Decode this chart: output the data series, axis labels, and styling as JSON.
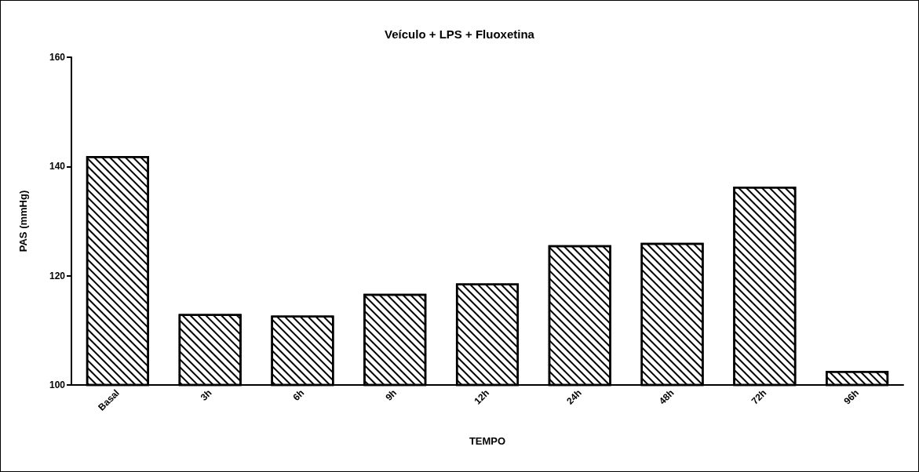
{
  "chart_data": {
    "type": "bar",
    "title": "Veículo + LPS + Fluoxetina",
    "xlabel": "TEMPO",
    "ylabel": "PAS (mmHg)",
    "categories": [
      "Basal",
      "3h",
      "6h",
      "9h",
      "12h",
      "24h",
      "48h",
      "72h",
      "96h"
    ],
    "values": [
      141.9,
      113,
      112.7,
      116.7,
      118.6,
      125.6,
      126,
      136.3,
      102.6
    ],
    "color": "#ffffff",
    "ylim": [
      100,
      160
    ],
    "yticks": [
      100,
      120,
      140,
      160
    ],
    "grid": false
  }
}
